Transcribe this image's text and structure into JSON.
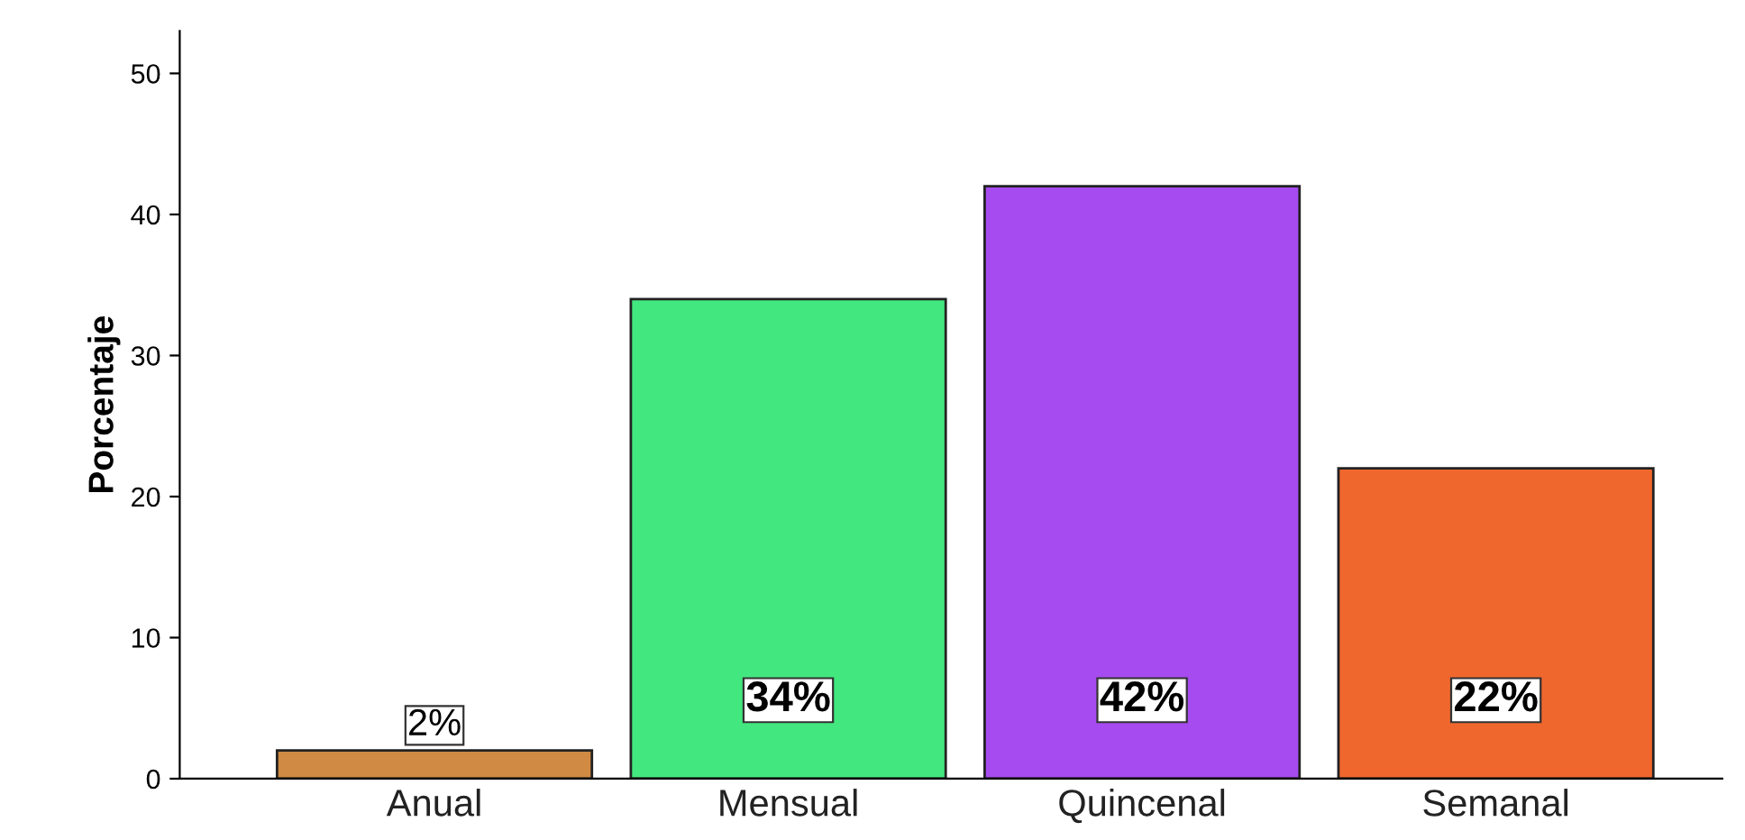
{
  "chart_data": {
    "type": "bar",
    "ylabel": "Porcentaje",
    "categories": [
      "Anual",
      "Mensual",
      "Quincenal",
      "Semanal"
    ],
    "values": [
      2,
      34,
      42,
      22
    ],
    "colors": [
      "#d08a43",
      "#42e87f",
      "#a64bf0",
      "#f0672d"
    ],
    "value_labels": [
      "2%",
      "34%",
      "42%",
      "22%"
    ],
    "ylim": [
      0,
      53
    ],
    "yticks": [
      0,
      10,
      20,
      30,
      40,
      50
    ],
    "grid": false,
    "legend": false
  }
}
